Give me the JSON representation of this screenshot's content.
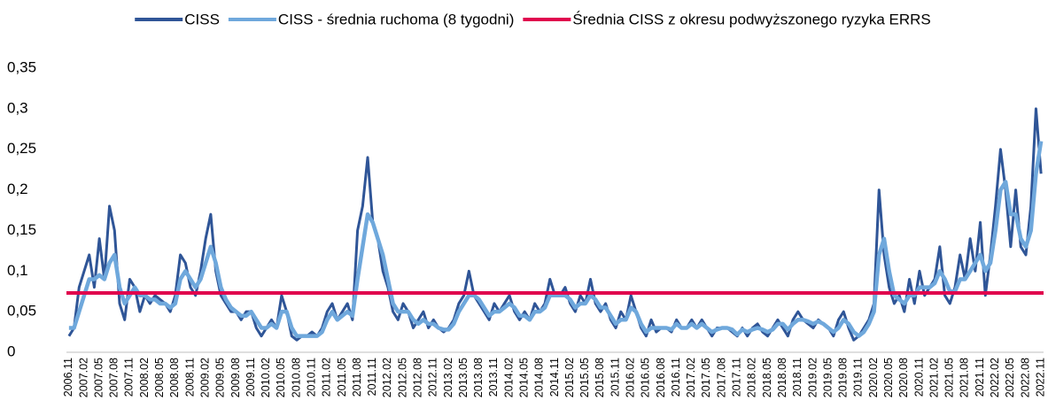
{
  "chart_data": {
    "type": "line",
    "categories": [
      "2006.11",
      null,
      null,
      "2007.02",
      null,
      null,
      "2007.05",
      null,
      null,
      "2007.08",
      null,
      null,
      "2007.11",
      null,
      null,
      "2008.02",
      null,
      null,
      "2008.05",
      null,
      null,
      "2008.08",
      null,
      null,
      "2008.11",
      null,
      null,
      "2009.02",
      null,
      null,
      "2009.05",
      null,
      null,
      "2009.08",
      null,
      null,
      "2009.11",
      null,
      null,
      "2010.02",
      null,
      null,
      "2010.05",
      null,
      null,
      "2010.08",
      null,
      null,
      "2010.11",
      null,
      null,
      "2011.02",
      null,
      null,
      "2011.05",
      null,
      null,
      "2011.08",
      null,
      null,
      "2011.11",
      null,
      null,
      "2012.02",
      null,
      null,
      "2012.05",
      null,
      null,
      "2012.08",
      null,
      null,
      "2012.11",
      null,
      null,
      "2013.02",
      null,
      null,
      "2013.05",
      null,
      null,
      "2013.08",
      null,
      null,
      "2013.11",
      null,
      null,
      "2014.02",
      null,
      null,
      "2014.05",
      null,
      null,
      "2014.08",
      null,
      null,
      "2014.11",
      null,
      null,
      "2015.02",
      null,
      null,
      "2015.05",
      null,
      null,
      "2015.08",
      null,
      null,
      "2015.11",
      null,
      null,
      "2016.02",
      null,
      null,
      "2016.05",
      null,
      null,
      "2016.08",
      null,
      null,
      "2016.11",
      null,
      null,
      "2017.02",
      null,
      null,
      "2017.05",
      null,
      null,
      "2017.08",
      null,
      null,
      "2017.11",
      null,
      null,
      "2018.02",
      null,
      null,
      "2018.05",
      null,
      null,
      "2018.08",
      null,
      null,
      "2018.11",
      null,
      null,
      "2019.02",
      null,
      null,
      "2019.05",
      null,
      null,
      "2019.08",
      null,
      null,
      "2019.11",
      null,
      null,
      "2020.02",
      null,
      null,
      "2020.05",
      null,
      null,
      "2020.08",
      null,
      null,
      "2020.11",
      null,
      null,
      "2021.02",
      null,
      null,
      "2021.05",
      null,
      null,
      "2021.08",
      null,
      null,
      "2021.11",
      null,
      null,
      "2022.02",
      null,
      null,
      "2022.05",
      null,
      null,
      "2022.08",
      null,
      null,
      "2022.11"
    ],
    "series": [
      {
        "name": "CISS",
        "color": "#2f5597",
        "values": [
          0.02,
          0.03,
          0.08,
          0.1,
          0.12,
          0.08,
          0.14,
          0.09,
          0.18,
          0.15,
          0.06,
          0.04,
          0.09,
          0.08,
          0.05,
          0.07,
          0.06,
          0.07,
          0.065,
          0.06,
          0.05,
          0.07,
          0.12,
          0.11,
          0.08,
          0.07,
          0.1,
          0.14,
          0.17,
          0.1,
          0.07,
          0.06,
          0.05,
          0.05,
          0.04,
          0.05,
          0.05,
          0.03,
          0.02,
          0.03,
          0.04,
          0.03,
          0.07,
          0.05,
          0.02,
          0.015,
          0.02,
          0.02,
          0.025,
          0.02,
          0.03,
          0.05,
          0.06,
          0.04,
          0.05,
          0.06,
          0.04,
          0.15,
          0.18,
          0.24,
          0.16,
          0.14,
          0.1,
          0.08,
          0.05,
          0.04,
          0.06,
          0.05,
          0.03,
          0.04,
          0.05,
          0.03,
          0.04,
          0.03,
          0.025,
          0.03,
          0.04,
          0.06,
          0.07,
          0.1,
          0.07,
          0.06,
          0.05,
          0.04,
          0.06,
          0.05,
          0.06,
          0.07,
          0.05,
          0.04,
          0.05,
          0.04,
          0.06,
          0.05,
          0.06,
          0.09,
          0.07,
          0.07,
          0.08,
          0.06,
          0.05,
          0.07,
          0.06,
          0.09,
          0.06,
          0.05,
          0.06,
          0.04,
          0.03,
          0.05,
          0.04,
          0.07,
          0.05,
          0.03,
          0.02,
          0.04,
          0.025,
          0.03,
          0.03,
          0.025,
          0.04,
          0.03,
          0.03,
          0.04,
          0.03,
          0.04,
          0.03,
          0.02,
          0.03,
          0.03,
          0.03,
          0.025,
          0.02,
          0.03,
          0.02,
          0.03,
          0.035,
          0.025,
          0.02,
          0.03,
          0.04,
          0.03,
          0.02,
          0.04,
          0.05,
          0.04,
          0.035,
          0.03,
          0.04,
          0.035,
          0.03,
          0.02,
          0.04,
          0.05,
          0.03,
          0.015,
          0.02,
          0.03,
          0.04,
          0.06,
          0.2,
          0.12,
          0.08,
          0.06,
          0.07,
          0.05,
          0.09,
          0.06,
          0.1,
          0.07,
          0.08,
          0.09,
          0.13,
          0.07,
          0.06,
          0.08,
          0.12,
          0.09,
          0.14,
          0.1,
          0.16,
          0.07,
          0.12,
          0.18,
          0.25,
          0.2,
          0.13,
          0.2,
          0.13,
          0.12,
          0.18,
          0.3,
          0.22
        ]
      },
      {
        "name": "CISS - średnia ruchoma (8 tygodni)",
        "color": "#6fa8dc",
        "values": [
          0.03,
          0.03,
          0.05,
          0.07,
          0.09,
          0.09,
          0.095,
          0.09,
          0.11,
          0.12,
          0.08,
          0.06,
          0.07,
          0.08,
          0.07,
          0.07,
          0.065,
          0.065,
          0.06,
          0.06,
          0.055,
          0.06,
          0.09,
          0.1,
          0.09,
          0.08,
          0.09,
          0.11,
          0.13,
          0.11,
          0.08,
          0.065,
          0.055,
          0.05,
          0.045,
          0.045,
          0.05,
          0.04,
          0.03,
          0.03,
          0.035,
          0.03,
          0.05,
          0.05,
          0.03,
          0.02,
          0.02,
          0.02,
          0.02,
          0.02,
          0.025,
          0.04,
          0.05,
          0.04,
          0.045,
          0.05,
          0.045,
          0.09,
          0.13,
          0.17,
          0.16,
          0.14,
          0.12,
          0.09,
          0.06,
          0.05,
          0.05,
          0.05,
          0.04,
          0.035,
          0.04,
          0.035,
          0.035,
          0.03,
          0.028,
          0.028,
          0.035,
          0.05,
          0.06,
          0.07,
          0.07,
          0.065,
          0.055,
          0.045,
          0.05,
          0.05,
          0.055,
          0.06,
          0.055,
          0.045,
          0.045,
          0.04,
          0.05,
          0.05,
          0.055,
          0.07,
          0.07,
          0.07,
          0.07,
          0.065,
          0.055,
          0.06,
          0.06,
          0.07,
          0.065,
          0.055,
          0.055,
          0.045,
          0.035,
          0.04,
          0.04,
          0.055,
          0.05,
          0.035,
          0.025,
          0.03,
          0.03,
          0.03,
          0.03,
          0.028,
          0.035,
          0.03,
          0.03,
          0.035,
          0.03,
          0.035,
          0.03,
          0.025,
          0.028,
          0.03,
          0.03,
          0.028,
          0.022,
          0.028,
          0.025,
          0.028,
          0.03,
          0.028,
          0.025,
          0.028,
          0.035,
          0.035,
          0.028,
          0.035,
          0.04,
          0.04,
          0.038,
          0.035,
          0.038,
          0.035,
          0.03,
          0.025,
          0.03,
          0.04,
          0.035,
          0.025,
          0.02,
          0.025,
          0.035,
          0.05,
          0.12,
          0.14,
          0.1,
          0.07,
          0.065,
          0.06,
          0.07,
          0.07,
          0.08,
          0.08,
          0.08,
          0.085,
          0.1,
          0.09,
          0.075,
          0.075,
          0.09,
          0.09,
          0.1,
          0.11,
          0.12,
          0.1,
          0.11,
          0.15,
          0.2,
          0.21,
          0.17,
          0.17,
          0.14,
          0.13,
          0.15,
          0.22,
          0.26
        ]
      }
    ],
    "reference_line": {
      "name": "Średnia CISS z okresu podwyższonego ryzyka ERRS",
      "color": "#e0004d",
      "value": 0.073
    },
    "ylim": [
      0,
      0.35
    ],
    "yticks": [
      0,
      {
        "value": 0.05,
        "label": "0,05"
      },
      {
        "value": 0.1,
        "label": "0,1"
      },
      {
        "value": 0.15,
        "label": "0,15"
      },
      {
        "value": 0.2,
        "label": "0,2"
      },
      {
        "value": 0.25,
        "label": "0,25"
      },
      {
        "value": 0.3,
        "label": "0,3"
      },
      {
        "value": 0.35,
        "label": "0,35"
      }
    ],
    "grid": false
  }
}
